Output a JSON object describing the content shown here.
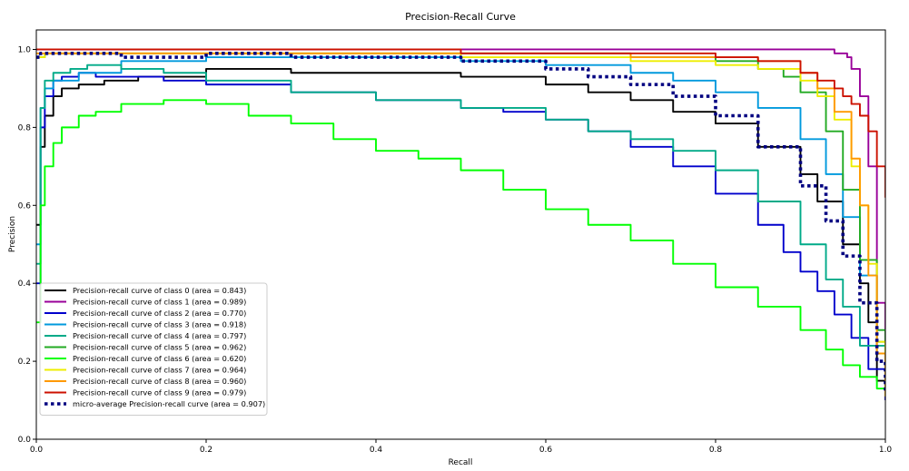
{
  "chart_data": {
    "type": "line",
    "title": "Precision-Recall Curve",
    "xlabel": "Recall",
    "ylabel": "Precision",
    "xlim": [
      0.0,
      1.0
    ],
    "ylim": [
      0.0,
      1.05
    ],
    "xticks": [
      0.0,
      0.2,
      0.4,
      0.6,
      0.8,
      1.0
    ],
    "yticks": [
      0.0,
      0.2,
      0.4,
      0.6,
      0.8,
      1.0
    ],
    "grid": false,
    "legend_position": "lower-left",
    "series": [
      {
        "name": "Precision-recall curve of class 0 (area = 0.843)",
        "color": "#000000",
        "x": [
          0.0,
          0.005,
          0.01,
          0.02,
          0.03,
          0.05,
          0.08,
          0.12,
          0.2,
          0.3,
          0.4,
          0.5,
          0.6,
          0.65,
          0.7,
          0.75,
          0.8,
          0.85,
          0.9,
          0.92,
          0.95,
          0.97,
          0.98,
          0.99,
          1.0
        ],
        "y": [
          0.55,
          0.75,
          0.83,
          0.88,
          0.9,
          0.91,
          0.92,
          0.93,
          0.95,
          0.94,
          0.94,
          0.93,
          0.91,
          0.89,
          0.87,
          0.84,
          0.81,
          0.75,
          0.68,
          0.61,
          0.5,
          0.4,
          0.3,
          0.15,
          0.1
        ]
      },
      {
        "name": "Precision-recall curve of class 1 (area = 0.989)",
        "color": "#990099",
        "x": [
          0.0,
          0.01,
          0.1,
          0.3,
          0.5,
          0.7,
          0.85,
          0.9,
          0.93,
          0.94,
          0.955,
          0.96,
          0.97,
          0.98,
          0.99,
          1.0
        ],
        "y": [
          1.0,
          1.0,
          1.0,
          1.0,
          1.0,
          1.0,
          1.0,
          1.0,
          1.0,
          0.99,
          0.98,
          0.95,
          0.88,
          0.7,
          0.35,
          0.1
        ]
      },
      {
        "name": "Precision-recall curve of class 2 (area = 0.770)",
        "color": "#0000cc",
        "x": [
          0.0,
          0.005,
          0.01,
          0.02,
          0.03,
          0.05,
          0.07,
          0.1,
          0.15,
          0.2,
          0.3,
          0.4,
          0.5,
          0.55,
          0.6,
          0.65,
          0.7,
          0.75,
          0.8,
          0.85,
          0.88,
          0.9,
          0.92,
          0.94,
          0.96,
          0.98,
          1.0
        ],
        "y": [
          0.4,
          0.8,
          0.88,
          0.92,
          0.93,
          0.94,
          0.93,
          0.93,
          0.92,
          0.91,
          0.89,
          0.87,
          0.85,
          0.84,
          0.82,
          0.79,
          0.75,
          0.7,
          0.63,
          0.55,
          0.48,
          0.43,
          0.38,
          0.32,
          0.26,
          0.18,
          0.1
        ]
      },
      {
        "name": "Precision-recall curve of class 3 (area = 0.918)",
        "color": "#0099dd",
        "x": [
          0.0,
          0.005,
          0.01,
          0.02,
          0.05,
          0.1,
          0.2,
          0.3,
          0.4,
          0.5,
          0.6,
          0.7,
          0.75,
          0.8,
          0.85,
          0.9,
          0.93,
          0.95,
          0.97,
          0.99,
          1.0
        ],
        "y": [
          0.5,
          0.85,
          0.9,
          0.92,
          0.94,
          0.97,
          0.98,
          0.98,
          0.98,
          0.97,
          0.96,
          0.94,
          0.92,
          0.89,
          0.85,
          0.77,
          0.68,
          0.57,
          0.42,
          0.25,
          0.15
        ]
      },
      {
        "name": "Precision-recall curve of class 4 (area = 0.797)",
        "color": "#00aa88",
        "x": [
          0.0,
          0.005,
          0.01,
          0.02,
          0.04,
          0.06,
          0.1,
          0.15,
          0.2,
          0.3,
          0.4,
          0.5,
          0.6,
          0.65,
          0.7,
          0.75,
          0.8,
          0.85,
          0.9,
          0.93,
          0.95,
          0.97,
          1.0
        ],
        "y": [
          0.45,
          0.85,
          0.92,
          0.94,
          0.95,
          0.96,
          0.95,
          0.94,
          0.92,
          0.89,
          0.87,
          0.85,
          0.82,
          0.79,
          0.77,
          0.74,
          0.69,
          0.61,
          0.5,
          0.41,
          0.34,
          0.24,
          0.12
        ]
      },
      {
        "name": "Precision-recall curve of class 5 (area = 0.962)",
        "color": "#22aa22",
        "x": [
          0.0,
          0.01,
          0.1,
          0.3,
          0.5,
          0.6,
          0.7,
          0.75,
          0.8,
          0.85,
          0.88,
          0.9,
          0.93,
          0.95,
          0.97,
          0.99,
          1.0
        ],
        "y": [
          0.98,
          0.99,
          0.99,
          0.99,
          0.99,
          0.99,
          0.98,
          0.98,
          0.97,
          0.95,
          0.93,
          0.89,
          0.79,
          0.64,
          0.46,
          0.28,
          0.15
        ]
      },
      {
        "name": "Precision-recall curve of class 6 (area = 0.620)",
        "color": "#00ff00",
        "x": [
          0.0,
          0.005,
          0.01,
          0.02,
          0.03,
          0.05,
          0.07,
          0.1,
          0.15,
          0.2,
          0.25,
          0.3,
          0.35,
          0.4,
          0.45,
          0.5,
          0.55,
          0.6,
          0.65,
          0.7,
          0.75,
          0.8,
          0.85,
          0.9,
          0.93,
          0.95,
          0.97,
          0.99,
          1.0
        ],
        "y": [
          0.3,
          0.6,
          0.7,
          0.76,
          0.8,
          0.83,
          0.84,
          0.86,
          0.87,
          0.86,
          0.83,
          0.81,
          0.77,
          0.74,
          0.72,
          0.69,
          0.64,
          0.59,
          0.55,
          0.51,
          0.45,
          0.39,
          0.34,
          0.28,
          0.23,
          0.19,
          0.16,
          0.13,
          0.11
        ]
      },
      {
        "name": "Precision-recall curve of class 7 (area = 0.964)",
        "color": "#eeee00",
        "x": [
          0.0,
          0.01,
          0.1,
          0.3,
          0.5,
          0.6,
          0.7,
          0.8,
          0.85,
          0.9,
          0.92,
          0.94,
          0.96,
          0.97,
          0.98,
          0.99,
          1.0
        ],
        "y": [
          0.98,
          0.99,
          0.99,
          0.99,
          0.98,
          0.98,
          0.97,
          0.96,
          0.95,
          0.92,
          0.88,
          0.82,
          0.7,
          0.6,
          0.45,
          0.25,
          0.12
        ]
      },
      {
        "name": "Precision-recall curve of class 8 (area = 0.960)",
        "color": "#ff9900",
        "x": [
          0.0,
          0.01,
          0.1,
          0.3,
          0.5,
          0.6,
          0.7,
          0.8,
          0.85,
          0.9,
          0.92,
          0.94,
          0.96,
          0.97,
          0.98,
          0.99,
          1.0
        ],
        "y": [
          0.99,
          0.99,
          0.99,
          0.99,
          0.99,
          0.99,
          0.98,
          0.98,
          0.97,
          0.94,
          0.9,
          0.84,
          0.72,
          0.6,
          0.42,
          0.22,
          0.11
        ]
      },
      {
        "name": "Precision-recall curve of class 9 (area = 0.979)",
        "color": "#cc1100",
        "x": [
          0.0,
          0.01,
          0.1,
          0.3,
          0.5,
          0.6,
          0.7,
          0.8,
          0.85,
          0.9,
          0.92,
          0.94,
          0.95,
          0.96,
          0.97,
          0.98,
          0.99,
          1.0
        ],
        "y": [
          1.0,
          1.0,
          1.0,
          1.0,
          0.99,
          0.99,
          0.99,
          0.98,
          0.97,
          0.94,
          0.92,
          0.9,
          0.88,
          0.86,
          0.83,
          0.79,
          0.7,
          0.62
        ]
      },
      {
        "name": "micro-average Precision-recall curve (area = 0.907)",
        "color": "#000080",
        "dashed": true,
        "x": [
          0.0,
          0.005,
          0.01,
          0.05,
          0.1,
          0.2,
          0.3,
          0.4,
          0.5,
          0.6,
          0.65,
          0.7,
          0.75,
          0.8,
          0.85,
          0.9,
          0.93,
          0.95,
          0.97,
          0.99,
          1.0
        ],
        "y": [
          0.98,
          0.99,
          0.99,
          0.99,
          0.98,
          0.99,
          0.98,
          0.98,
          0.97,
          0.95,
          0.93,
          0.91,
          0.88,
          0.83,
          0.75,
          0.65,
          0.56,
          0.47,
          0.35,
          0.2,
          0.12
        ]
      }
    ]
  }
}
